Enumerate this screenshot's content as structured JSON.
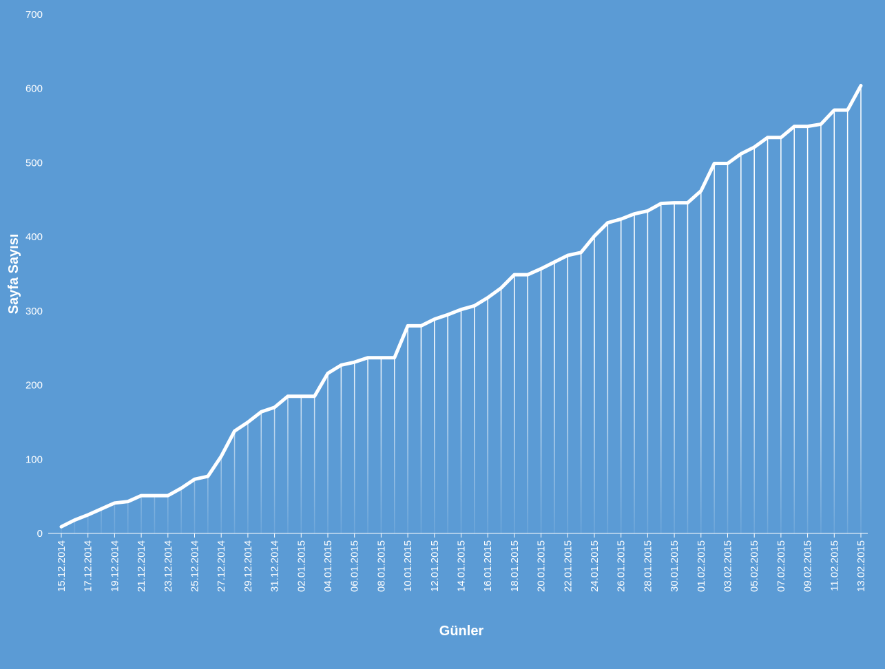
{
  "chart_data": {
    "type": "line",
    "ylabel": "Sayfa Sayısı",
    "xlabel": "Günler",
    "categories": [
      "15.12.2014",
      null,
      "17.12.2014",
      null,
      "19.12.2014",
      null,
      "21.12.2014",
      null,
      "23.12.2014",
      null,
      "25.12.2014",
      null,
      "27.12.2014",
      null,
      "29.12.2014",
      null,
      "31.12.2014",
      null,
      "02.01.2015",
      null,
      "04.01.2015",
      null,
      "06.01.2015",
      null,
      "08.01.2015",
      null,
      "10.01.2015",
      null,
      "12.01.2015",
      null,
      "14.01.2015",
      null,
      "16.01.2015",
      null,
      "18.01.2015",
      null,
      "20.01.2015",
      null,
      "22.01.2015",
      null,
      "24.01.2015",
      null,
      "26.01.2015",
      null,
      "28.01.2015",
      null,
      "30.01.2015",
      null,
      "01.02.2015",
      null,
      "03.02.2015",
      null,
      "05.02.2015",
      null,
      "07.02.2015",
      null,
      "09.02.2015",
      null,
      "11.02.2015",
      null,
      "13.02.2015"
    ],
    "values": [
      9,
      18,
      25,
      33,
      41,
      43,
      51,
      51,
      51,
      61,
      73,
      77,
      104,
      138,
      150,
      164,
      170,
      185,
      185,
      185,
      216,
      227,
      231,
      237,
      237,
      237,
      280,
      280,
      289,
      295,
      302,
      307,
      318,
      331,
      349,
      349,
      357,
      366,
      375,
      379,
      401,
      419,
      424,
      431,
      435,
      445,
      446,
      446,
      462,
      499,
      499,
      512,
      521,
      534,
      534,
      549,
      549,
      552,
      571,
      571,
      604
    ],
    "color": "#ffffff",
    "drop_lines": true,
    "grid": false,
    "ylim": [
      0,
      700
    ],
    "yticks": [
      0,
      100,
      200,
      300,
      400,
      500,
      600,
      700
    ]
  }
}
